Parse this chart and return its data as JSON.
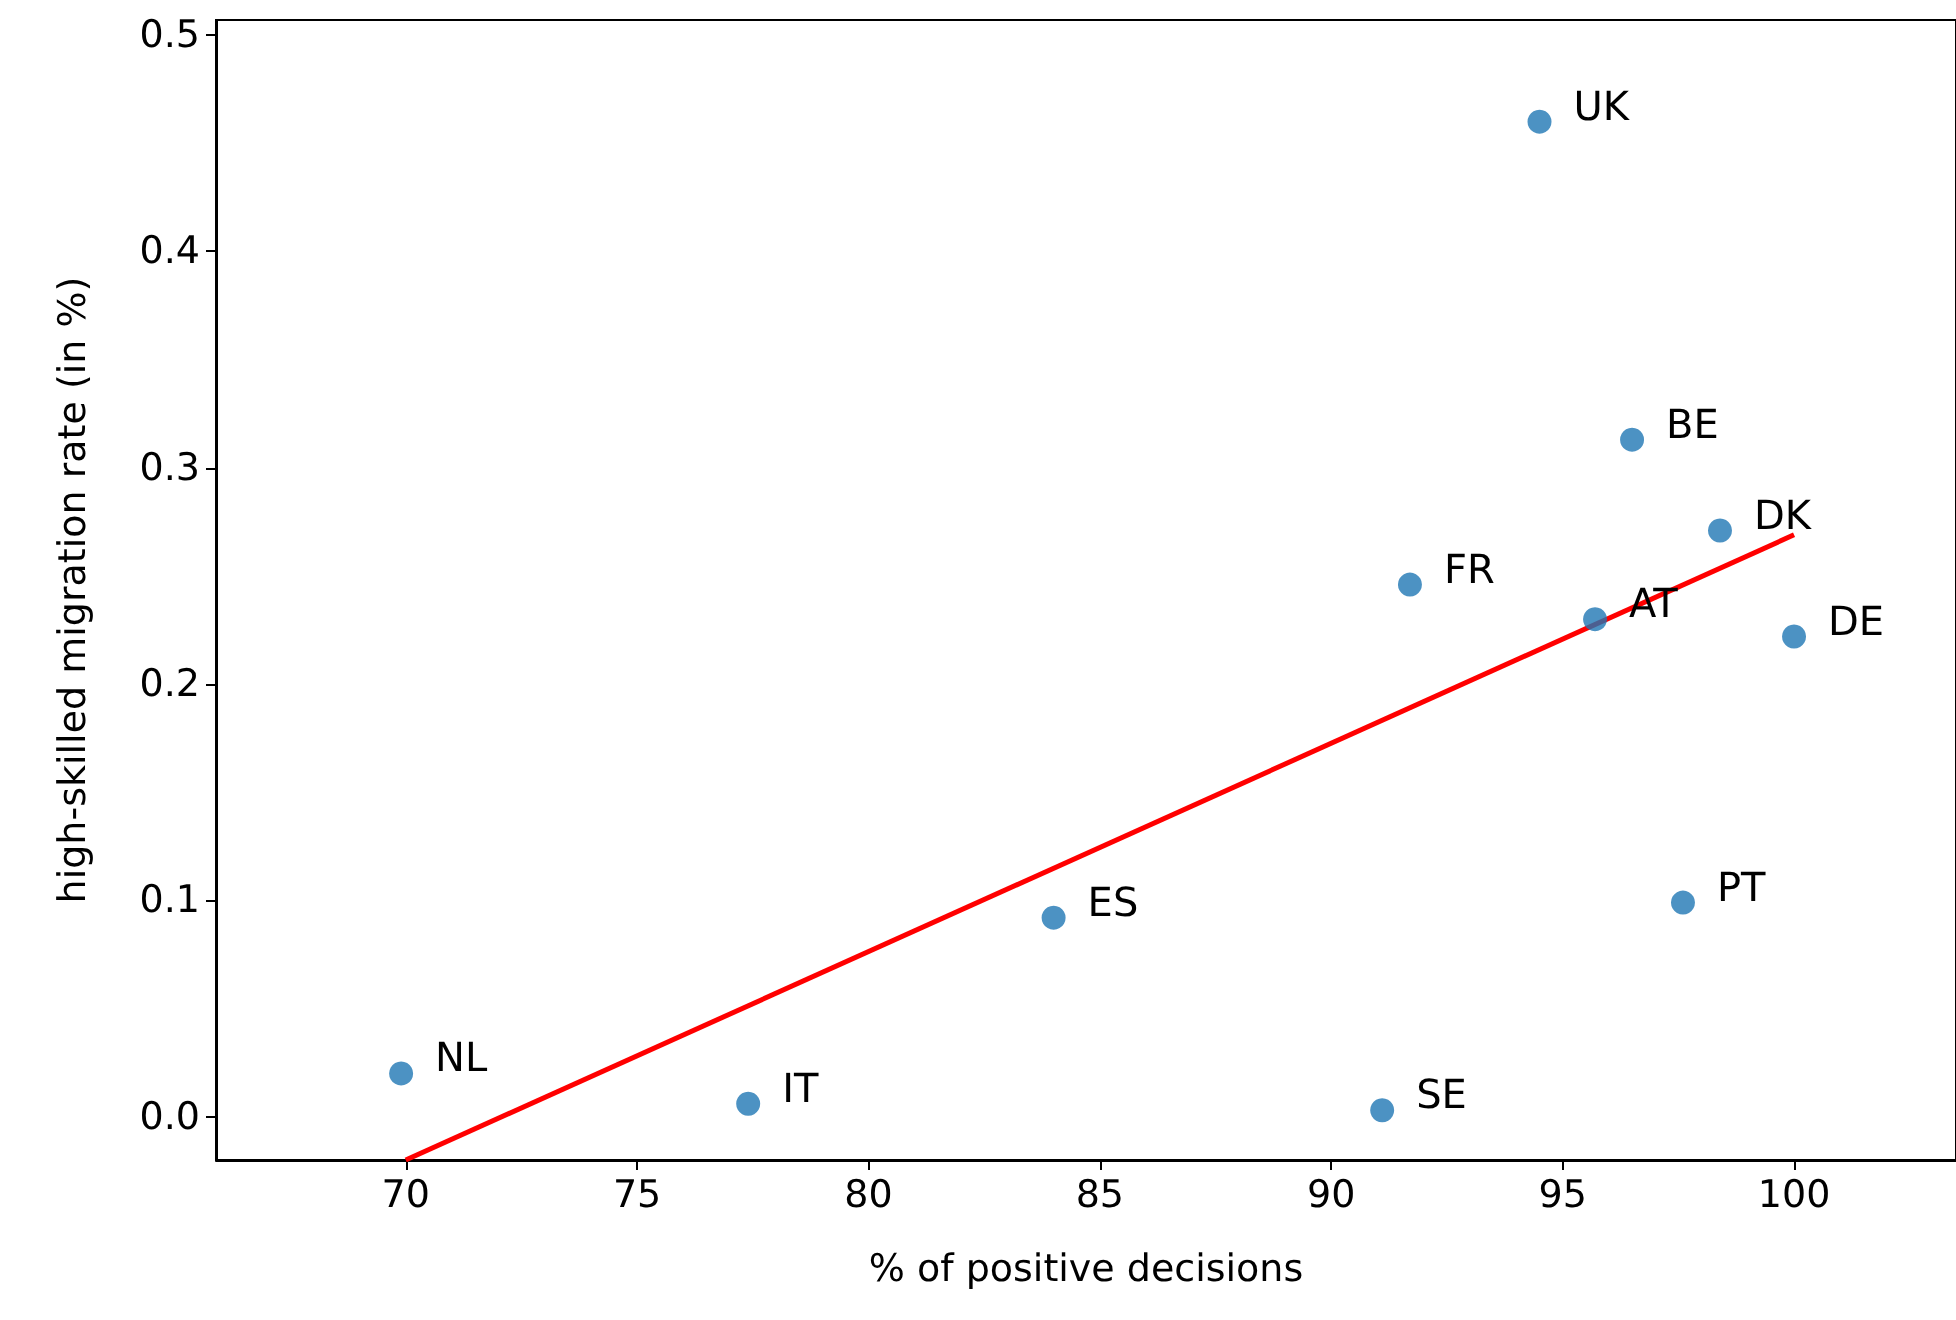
{
  "chart_data": {
    "type": "scatter",
    "xlabel": "% of positive decisions",
    "ylabel": "high-skilled migration rate (in %)",
    "x": [
      69.9,
      77.4,
      84.0,
      91.1,
      91.7,
      94.5,
      95.7,
      96.5,
      98.4,
      97.6,
      100.0
    ],
    "series": [
      {
        "color": "#1f77b4",
        "marker": "circle",
        "values": [
          0.02,
          0.006,
          0.092,
          0.003,
          0.246,
          0.46,
          0.23,
          0.313,
          0.271,
          0.099,
          0.222
        ]
      },
      {
        "type": "line",
        "color": "#ff0000",
        "x": [
          70,
          100
        ],
        "values": [
          -0.02,
          0.269
        ]
      }
    ],
    "annotations": [
      {
        "text": "NL",
        "x": 69.9,
        "y": 0.02
      },
      {
        "text": "IT",
        "x": 77.4,
        "y": 0.006
      },
      {
        "text": "ES",
        "x": 84.0,
        "y": 0.092
      },
      {
        "text": "SE",
        "x": 91.1,
        "y": 0.003
      },
      {
        "text": "FR",
        "x": 91.7,
        "y": 0.246
      },
      {
        "text": "UK",
        "x": 94.5,
        "y": 0.46
      },
      {
        "text": "AT",
        "x": 95.7,
        "y": 0.23
      },
      {
        "text": "BE",
        "x": 96.5,
        "y": 0.313
      },
      {
        "text": "DK",
        "x": 98.4,
        "y": 0.271
      },
      {
        "text": "PT",
        "x": 97.6,
        "y": 0.099
      },
      {
        "text": "DE",
        "x": 100.0,
        "y": 0.222
      }
    ],
    "xlim": [
      65.9,
      103.5
    ],
    "ylim": [
      -0.02,
      0.507
    ],
    "xticks": [
      70,
      75,
      80,
      85,
      90,
      95,
      100
    ],
    "yticks": [
      {
        "value": 0,
        "label": "0.0"
      },
      0.1,
      0.2,
      0.3,
      0.4,
      0.5
    ],
    "grid": false,
    "line_style": "solid"
  }
}
